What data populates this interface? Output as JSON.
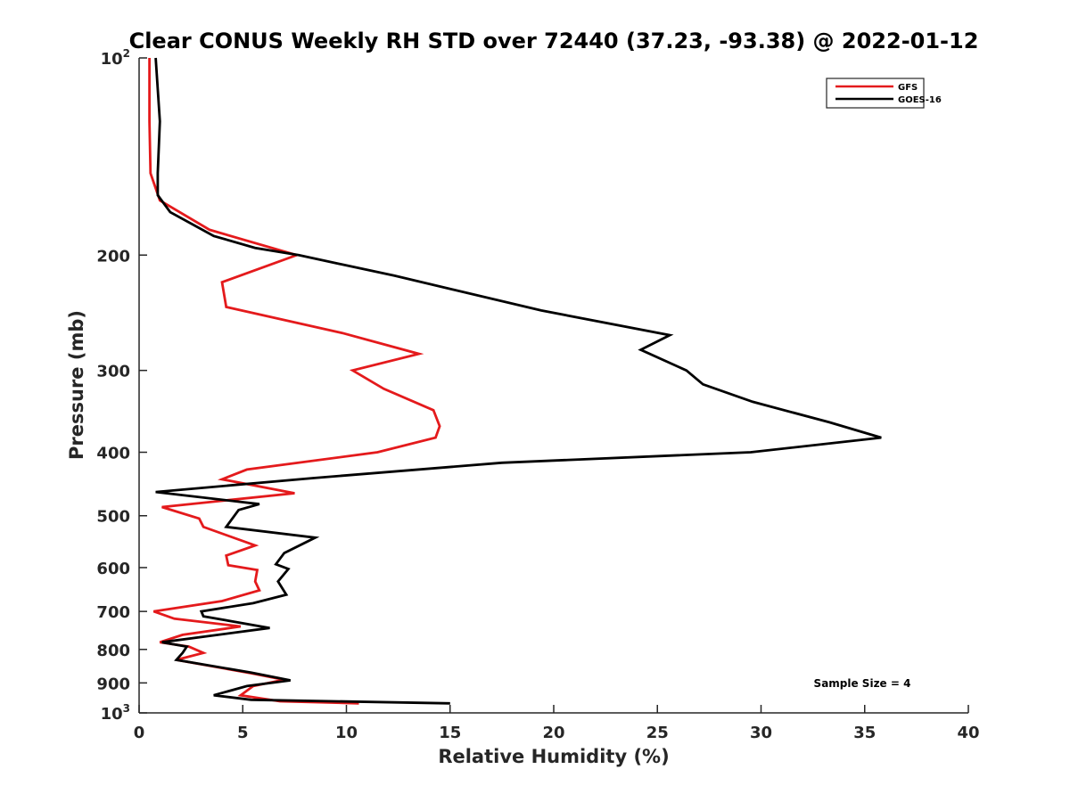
{
  "chart_data": {
    "type": "line",
    "title": "Clear CONUS Weekly RH STD over 72440 (37.23, -93.38) @ 2022-01-12",
    "xlabel": "Relative Humidity (%)",
    "ylabel": "Pressure (mb)",
    "xlim": [
      0,
      40
    ],
    "ylim": [
      100,
      1000
    ],
    "y_scale": "log",
    "y_reversed": true,
    "grid": false,
    "legend_position": "top-right",
    "x_ticks": [
      0,
      5,
      10,
      15,
      20,
      25,
      30,
      35,
      40
    ],
    "x_tick_labels": [
      "0",
      "5",
      "10",
      "15",
      "20",
      "25",
      "30",
      "35",
      "40"
    ],
    "y_ticks": [
      {
        "value": 100,
        "base": "10",
        "exp": "2"
      },
      {
        "value": 200,
        "label": "200"
      },
      {
        "value": 300,
        "label": "300"
      },
      {
        "value": 400,
        "label": "400"
      },
      {
        "value": 500,
        "label": "500"
      },
      {
        "value": 600,
        "label": "600"
      },
      {
        "value": 700,
        "label": "700"
      },
      {
        "value": 800,
        "label": "800"
      },
      {
        "value": 900,
        "label": "900"
      },
      {
        "value": 1000,
        "base": "10",
        "exp": "3"
      }
    ],
    "annotation": "Sample Size = 4",
    "series": [
      {
        "name": "GFS",
        "color": "#e41a1c",
        "points": [
          {
            "x": 0.5,
            "y": 100
          },
          {
            "x": 0.5,
            "y": 125
          },
          {
            "x": 0.55,
            "y": 150
          },
          {
            "x": 1.0,
            "y": 165
          },
          {
            "x": 3.4,
            "y": 183
          },
          {
            "x": 7.6,
            "y": 200
          },
          {
            "x": 4.0,
            "y": 220
          },
          {
            "x": 4.2,
            "y": 240
          },
          {
            "x": 9.8,
            "y": 263
          },
          {
            "x": 13.5,
            "y": 283
          },
          {
            "x": 10.3,
            "y": 300
          },
          {
            "x": 11.8,
            "y": 320
          },
          {
            "x": 14.2,
            "y": 345
          },
          {
            "x": 14.5,
            "y": 365
          },
          {
            "x": 14.3,
            "y": 380
          },
          {
            "x": 11.5,
            "y": 400
          },
          {
            "x": 5.2,
            "y": 425
          },
          {
            "x": 4.0,
            "y": 440
          },
          {
            "x": 7.5,
            "y": 462
          },
          {
            "x": 1.1,
            "y": 485
          },
          {
            "x": 2.9,
            "y": 505
          },
          {
            "x": 3.1,
            "y": 520
          },
          {
            "x": 5.6,
            "y": 555
          },
          {
            "x": 4.2,
            "y": 575
          },
          {
            "x": 4.3,
            "y": 595
          },
          {
            "x": 5.7,
            "y": 605
          },
          {
            "x": 5.6,
            "y": 630
          },
          {
            "x": 5.8,
            "y": 650
          },
          {
            "x": 4.0,
            "y": 675
          },
          {
            "x": 0.7,
            "y": 700
          },
          {
            "x": 1.7,
            "y": 718
          },
          {
            "x": 4.9,
            "y": 738
          },
          {
            "x": 2.1,
            "y": 760
          },
          {
            "x": 1.0,
            "y": 780
          },
          {
            "x": 2.4,
            "y": 792
          },
          {
            "x": 3.1,
            "y": 810
          },
          {
            "x": 1.8,
            "y": 830
          },
          {
            "x": 5.4,
            "y": 870
          },
          {
            "x": 7.0,
            "y": 890
          },
          {
            "x": 5.5,
            "y": 910
          },
          {
            "x": 4.9,
            "y": 940
          },
          {
            "x": 6.8,
            "y": 960
          },
          {
            "x": 10.6,
            "y": 967
          }
        ]
      },
      {
        "name": "GOES-16",
        "color": "#000000",
        "points": [
          {
            "x": 0.8,
            "y": 100
          },
          {
            "x": 1.0,
            "y": 125
          },
          {
            "x": 0.9,
            "y": 150
          },
          {
            "x": 0.9,
            "y": 162
          },
          {
            "x": 1.5,
            "y": 172
          },
          {
            "x": 3.6,
            "y": 187
          },
          {
            "x": 5.6,
            "y": 195
          },
          {
            "x": 7.7,
            "y": 200
          },
          {
            "x": 12.3,
            "y": 215
          },
          {
            "x": 19.4,
            "y": 243
          },
          {
            "x": 25.6,
            "y": 265
          },
          {
            "x": 24.2,
            "y": 279
          },
          {
            "x": 26.4,
            "y": 300
          },
          {
            "x": 27.2,
            "y": 315
          },
          {
            "x": 29.6,
            "y": 335
          },
          {
            "x": 33.3,
            "y": 360
          },
          {
            "x": 35.8,
            "y": 380
          },
          {
            "x": 29.5,
            "y": 400
          },
          {
            "x": 17.5,
            "y": 415
          },
          {
            "x": 8.4,
            "y": 438
          },
          {
            "x": 0.8,
            "y": 460
          },
          {
            "x": 5.8,
            "y": 480
          },
          {
            "x": 4.8,
            "y": 490
          },
          {
            "x": 4.2,
            "y": 520
          },
          {
            "x": 8.5,
            "y": 540
          },
          {
            "x": 7.0,
            "y": 570
          },
          {
            "x": 6.6,
            "y": 593
          },
          {
            "x": 7.2,
            "y": 603
          },
          {
            "x": 6.7,
            "y": 630
          },
          {
            "x": 7.1,
            "y": 660
          },
          {
            "x": 5.5,
            "y": 680
          },
          {
            "x": 3.0,
            "y": 700
          },
          {
            "x": 3.1,
            "y": 712
          },
          {
            "x": 6.3,
            "y": 742
          },
          {
            "x": 1.1,
            "y": 780
          },
          {
            "x": 2.3,
            "y": 792
          },
          {
            "x": 2.1,
            "y": 810
          },
          {
            "x": 1.8,
            "y": 830
          },
          {
            "x": 5.4,
            "y": 868
          },
          {
            "x": 7.3,
            "y": 892
          },
          {
            "x": 5.2,
            "y": 910
          },
          {
            "x": 3.6,
            "y": 940
          },
          {
            "x": 5.4,
            "y": 955
          },
          {
            "x": 15.0,
            "y": 967
          }
        ]
      }
    ]
  }
}
